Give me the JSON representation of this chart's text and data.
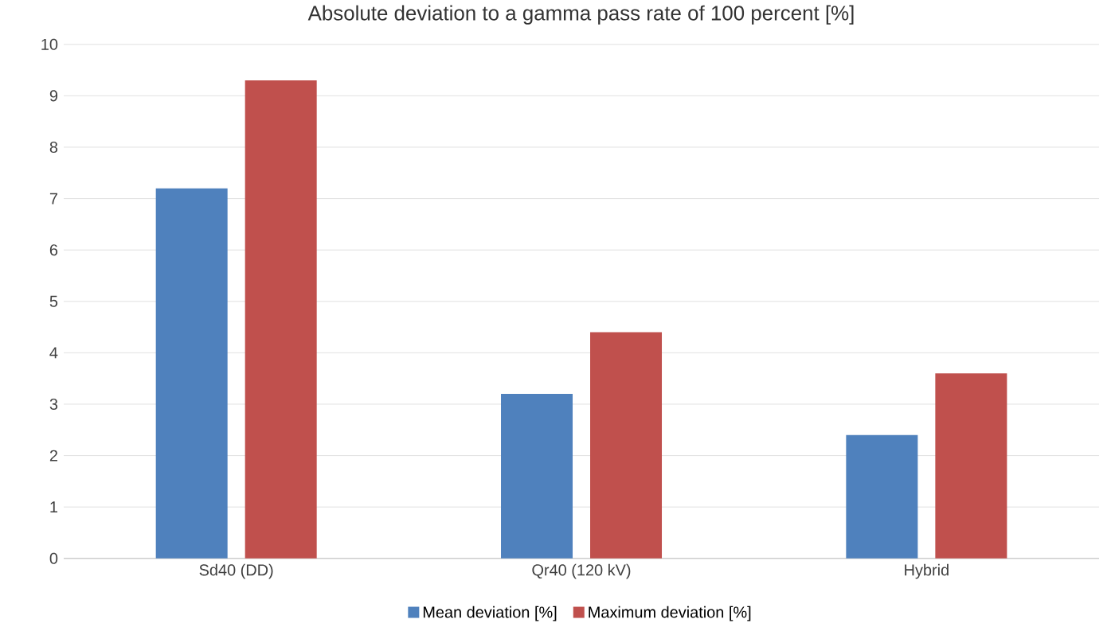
{
  "chart_data": {
    "type": "bar",
    "title": "Absolute deviation to a gamma pass rate of 100 percent [%]",
    "categories": [
      "Sd40 (DD)",
      "Qr40 (120 kV)",
      "Hybrid"
    ],
    "series": [
      {
        "name": "Mean deviation [%]",
        "color": "#4f81bd",
        "values": [
          7.2,
          3.2,
          2.4
        ]
      },
      {
        "name": "Maximum deviation [%]",
        "color": "#c0504d",
        "values": [
          9.3,
          4.4,
          3.6
        ]
      }
    ],
    "ylim": [
      0,
      10
    ],
    "yticks": [
      0,
      1,
      2,
      3,
      4,
      5,
      6,
      7,
      8,
      9,
      10
    ],
    "grid": "y",
    "legend": "bottom"
  }
}
